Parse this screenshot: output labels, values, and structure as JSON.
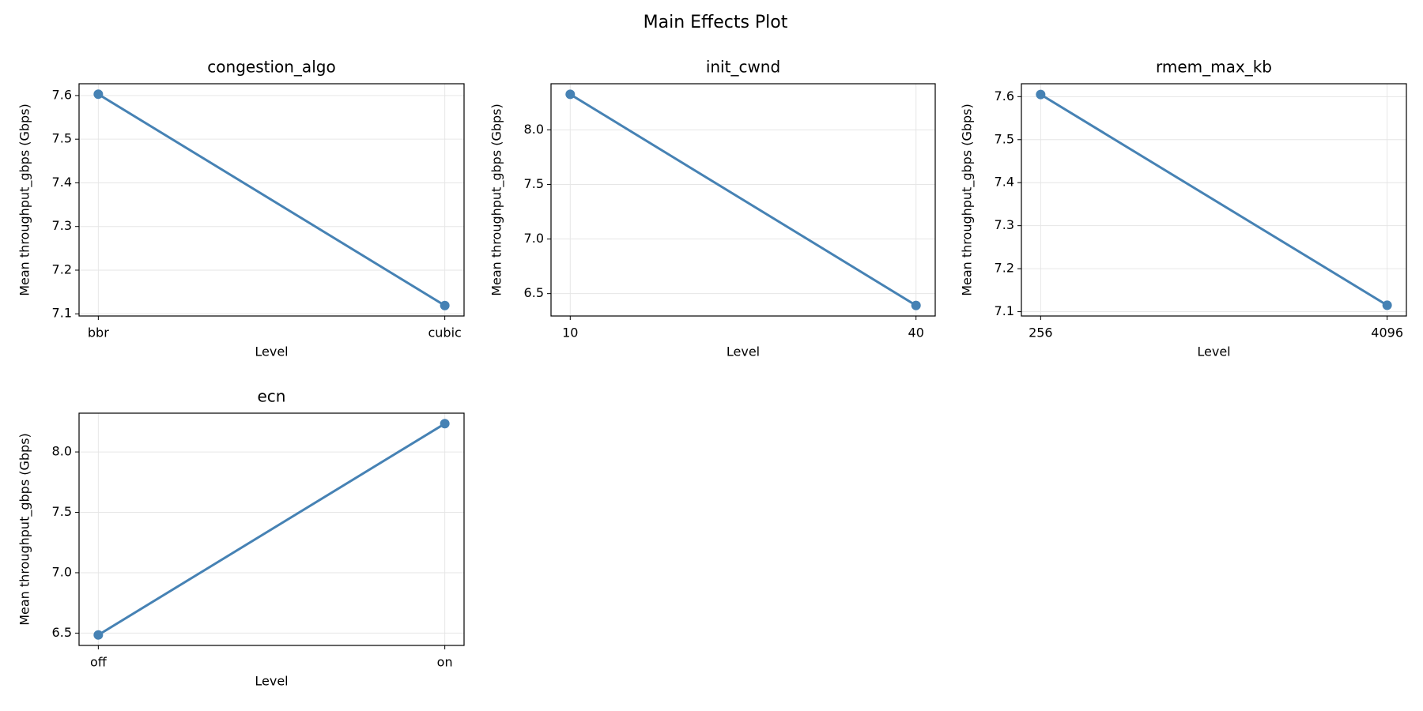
{
  "title": "Main Effects Plot",
  "chart_data": [
    {
      "type": "line",
      "title": "congestion_algo",
      "xlabel": "Level",
      "ylabel": "Mean throughput_gbps (Gbps)",
      "categories": [
        "bbr",
        "cubic"
      ],
      "values": [
        7.603,
        7.119
      ],
      "color": "#4682b4",
      "ylim": [
        7.095,
        7.627
      ],
      "yticks": [
        {
          "value": 7.1,
          "label": "7.1"
        },
        {
          "value": 7.2,
          "label": "7.2"
        },
        {
          "value": 7.3,
          "label": "7.3"
        },
        {
          "value": 7.4,
          "label": "7.4"
        },
        {
          "value": 7.5,
          "label": "7.5"
        },
        {
          "value": 7.6,
          "label": "7.6"
        }
      ],
      "grid": true
    },
    {
      "type": "line",
      "title": "init_cwnd",
      "xlabel": "Level",
      "ylabel": "Mean throughput_gbps (Gbps)",
      "categories": [
        "10",
        "40"
      ],
      "values": [
        8.325,
        6.392
      ],
      "color": "#4682b4",
      "ylim": [
        6.295,
        8.422
      ],
      "yticks": [
        6.5,
        {
          "value": 7,
          "label": "7.0"
        },
        7.5,
        {
          "value": 8,
          "label": "8.0"
        }
      ],
      "grid": true
    },
    {
      "type": "line",
      "title": "rmem_max_kb",
      "xlabel": "Level",
      "ylabel": "Mean throughput_gbps (Gbps)",
      "categories": [
        "256",
        "4096"
      ],
      "values": [
        7.605,
        7.115
      ],
      "color": "#4682b4",
      "ylim": [
        7.09,
        7.63
      ],
      "yticks": [
        {
          "value": 7.1,
          "label": "7.1"
        },
        {
          "value": 7.2,
          "label": "7.2"
        },
        {
          "value": 7.3,
          "label": "7.3"
        },
        {
          "value": 7.4,
          "label": "7.4"
        },
        {
          "value": 7.5,
          "label": "7.5"
        },
        {
          "value": 7.6,
          "label": "7.6"
        }
      ],
      "grid": true
    },
    {
      "type": "line",
      "title": "ecn",
      "xlabel": "Level",
      "ylabel": "Mean throughput_gbps (Gbps)",
      "categories": [
        "off",
        "on"
      ],
      "values": [
        6.485,
        8.234
      ],
      "color": "#4682b4",
      "ylim": [
        6.398,
        8.321
      ],
      "yticks": [
        6.5,
        {
          "value": 7,
          "label": "7.0"
        },
        7.5,
        {
          "value": 8,
          "label": "8.0"
        }
      ],
      "grid": true
    }
  ]
}
